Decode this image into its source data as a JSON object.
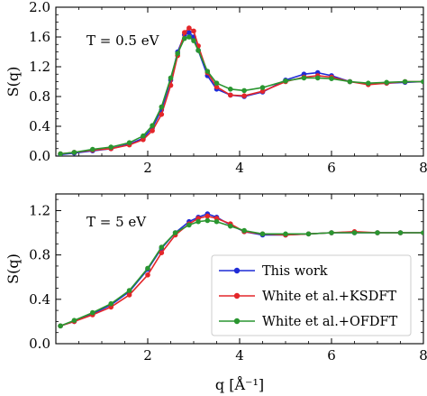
{
  "series_styles": [
    {
      "name": "This work",
      "color": "#1f2bd6"
    },
    {
      "name": "White et al.+KSDFT",
      "color": "#e3262a"
    },
    {
      "name": "White et al.+OFDFT",
      "color": "#2a9630"
    }
  ],
  "chart_data": [
    {
      "type": "line",
      "title": "",
      "annotation": "T = 0.5 eV",
      "xlabel": "",
      "ylabel": "S(q)",
      "xlim": [
        0.0,
        8.0
      ],
      "ylim": [
        0.0,
        2.0
      ],
      "xticks": [
        2,
        4,
        6,
        8
      ],
      "yticks": [
        0.0,
        0.4,
        0.8,
        1.2,
        1.6,
        2.0
      ],
      "ytick_labels": [
        "0.0",
        "0.4",
        "0.8",
        "1.2",
        "1.6",
        "2.0"
      ],
      "grid": false,
      "series": [
        {
          "name": "This work",
          "x": [
            0.1,
            0.4,
            0.8,
            1.2,
            1.6,
            1.9,
            2.1,
            2.3,
            2.5,
            2.65,
            2.8,
            2.9,
            3.0,
            3.1,
            3.3,
            3.5,
            3.8,
            4.1,
            4.5,
            5.0,
            5.4,
            5.7,
            6.0,
            6.4,
            6.8,
            7.2,
            7.6,
            8.0
          ],
          "y": [
            0.02,
            0.04,
            0.07,
            0.1,
            0.16,
            0.24,
            0.38,
            0.62,
            1.02,
            1.4,
            1.63,
            1.66,
            1.6,
            1.42,
            1.08,
            0.9,
            0.82,
            0.8,
            0.86,
            1.02,
            1.1,
            1.12,
            1.08,
            1.0,
            0.97,
            0.98,
            0.99,
            1.0
          ]
        },
        {
          "name": "White et al.+KSDFT",
          "x": [
            0.1,
            0.4,
            0.8,
            1.2,
            1.6,
            1.9,
            2.1,
            2.3,
            2.5,
            2.65,
            2.8,
            2.9,
            3.0,
            3.1,
            3.3,
            3.5,
            3.8,
            4.1,
            4.5,
            5.0,
            5.4,
            5.7,
            6.0,
            6.4,
            6.8,
            7.2,
            7.6,
            8.0
          ],
          "y": [
            0.03,
            0.05,
            0.08,
            0.1,
            0.15,
            0.22,
            0.34,
            0.56,
            0.95,
            1.35,
            1.66,
            1.72,
            1.68,
            1.48,
            1.12,
            0.93,
            0.82,
            0.81,
            0.87,
            1.0,
            1.06,
            1.08,
            1.06,
            1.0,
            0.96,
            0.98,
            1.0,
            1.0
          ]
        },
        {
          "name": "White et al.+OFDFT",
          "x": [
            0.1,
            0.4,
            0.8,
            1.2,
            1.6,
            1.9,
            2.1,
            2.3,
            2.5,
            2.65,
            2.8,
            2.9,
            3.0,
            3.1,
            3.3,
            3.5,
            3.8,
            4.1,
            4.5,
            5.0,
            5.4,
            5.7,
            6.0,
            6.4,
            6.8,
            7.2,
            7.6,
            8.0
          ],
          "y": [
            0.03,
            0.05,
            0.09,
            0.12,
            0.18,
            0.27,
            0.41,
            0.66,
            1.05,
            1.38,
            1.58,
            1.6,
            1.55,
            1.42,
            1.14,
            0.98,
            0.9,
            0.88,
            0.92,
            1.01,
            1.05,
            1.05,
            1.04,
            1.0,
            0.98,
            0.99,
            1.0,
            1.0
          ]
        }
      ]
    },
    {
      "type": "line",
      "title": "",
      "annotation": "T = 5 eV",
      "xlabel": "q [Å⁻¹]",
      "ylabel": "S(q)",
      "xlim": [
        0.0,
        8.0
      ],
      "ylim": [
        0.0,
        1.35
      ],
      "xticks": [
        2,
        4,
        6,
        8
      ],
      "yticks": [
        0.0,
        0.4,
        0.8,
        1.2
      ],
      "ytick_labels": [
        "0.0",
        "0.4",
        "0.8",
        "1.2"
      ],
      "grid": false,
      "legend_position": "lower-right",
      "series": [
        {
          "name": "This work",
          "x": [
            0.1,
            0.4,
            0.8,
            1.2,
            1.6,
            2.0,
            2.3,
            2.6,
            2.9,
            3.1,
            3.3,
            3.5,
            3.8,
            4.1,
            4.5,
            5.0,
            5.5,
            6.0,
            6.5,
            7.0,
            7.5,
            8.0
          ],
          "y": [
            0.16,
            0.2,
            0.27,
            0.35,
            0.47,
            0.67,
            0.86,
            1.0,
            1.1,
            1.14,
            1.17,
            1.14,
            1.07,
            1.01,
            0.98,
            0.98,
            0.99,
            1.0,
            1.0,
            1.0,
            1.0,
            1.0
          ]
        },
        {
          "name": "White et al.+KSDFT",
          "x": [
            0.1,
            0.4,
            0.8,
            1.2,
            1.6,
            2.0,
            2.3,
            2.6,
            2.9,
            3.1,
            3.3,
            3.5,
            3.8,
            4.1,
            4.5,
            5.0,
            5.5,
            6.0,
            6.5,
            7.0,
            7.5,
            8.0
          ],
          "y": [
            0.16,
            0.2,
            0.26,
            0.33,
            0.44,
            0.62,
            0.82,
            0.98,
            1.08,
            1.13,
            1.15,
            1.13,
            1.08,
            1.01,
            0.99,
            0.98,
            0.99,
            1.0,
            1.01,
            1.0,
            1.0,
            1.0
          ]
        },
        {
          "name": "White et al.+OFDFT",
          "x": [
            0.1,
            0.4,
            0.8,
            1.2,
            1.6,
            2.0,
            2.3,
            2.6,
            2.9,
            3.1,
            3.3,
            3.5,
            3.8,
            4.1,
            4.5,
            5.0,
            5.5,
            6.0,
            6.5,
            7.0,
            7.5,
            8.0
          ],
          "y": [
            0.16,
            0.21,
            0.28,
            0.36,
            0.48,
            0.68,
            0.87,
            1.0,
            1.07,
            1.1,
            1.11,
            1.1,
            1.06,
            1.02,
            0.99,
            0.99,
            0.99,
            1.0,
            1.0,
            1.0,
            1.0,
            1.0
          ]
        }
      ]
    }
  ]
}
